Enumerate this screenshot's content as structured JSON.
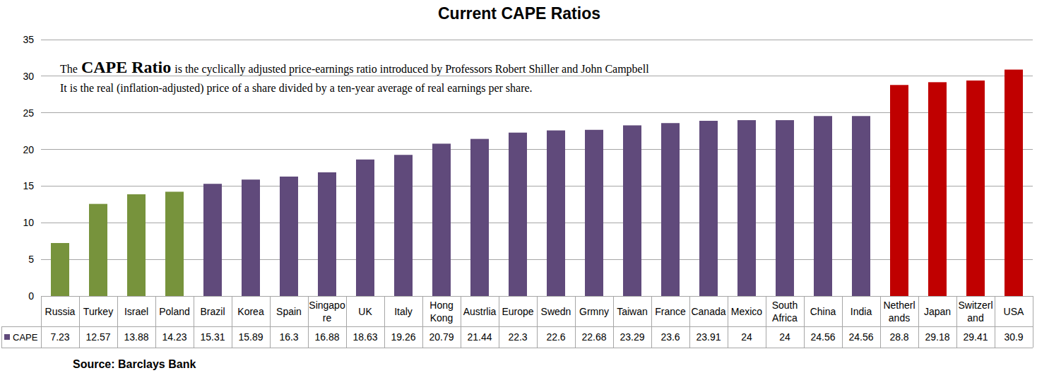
{
  "chart_data": {
    "type": "bar",
    "title": "Current CAPE Ratios",
    "annotation": {
      "lead": "The",
      "term": "CAPE Ratio",
      "rest": "is the cyclically adjusted price-earnings ratio introduced by Professors Robert Shiller and John Campbell",
      "line2": "It is the real (inflation-adjusted) price of a share divided by a ten-year average of real earnings per share."
    },
    "source": "Source: Barclays Bank",
    "categories": [
      "Russia",
      "Turkey",
      "Israel",
      "Poland",
      "Brazil",
      "Korea",
      "Spain",
      "Singapore",
      "UK",
      "Italy",
      "Hong Kong",
      "Austrlia",
      "Europe",
      "Swedn",
      "Grmny",
      "Taiwan",
      "France",
      "Canada",
      "Mexico",
      "South Africa",
      "China",
      "India",
      "Netherlands",
      "Japan",
      "Switzerland",
      "USA"
    ],
    "series": [
      {
        "name": "CAPE",
        "color": "#604a7b",
        "values": [
          7.23,
          12.57,
          13.88,
          14.23,
          15.31,
          15.89,
          16.3,
          16.88,
          18.63,
          19.26,
          20.79,
          21.44,
          22.3,
          22.6,
          22.68,
          23.29,
          23.6,
          23.91,
          24,
          24,
          24.56,
          24.56,
          28.8,
          29.18,
          29.41,
          30.9
        ]
      }
    ],
    "colors": [
      "#77933c",
      "#77933c",
      "#77933c",
      "#77933c",
      "#604a7b",
      "#604a7b",
      "#604a7b",
      "#604a7b",
      "#604a7b",
      "#604a7b",
      "#604a7b",
      "#604a7b",
      "#604a7b",
      "#604a7b",
      "#604a7b",
      "#604a7b",
      "#604a7b",
      "#604a7b",
      "#604a7b",
      "#604a7b",
      "#604a7b",
      "#604a7b",
      "#c00000",
      "#c00000",
      "#c00000",
      "#c00000"
    ],
    "ylim": [
      0,
      35
    ],
    "yticks": [
      0,
      5,
      10,
      15,
      20,
      25,
      30,
      35
    ],
    "grid": true
  }
}
